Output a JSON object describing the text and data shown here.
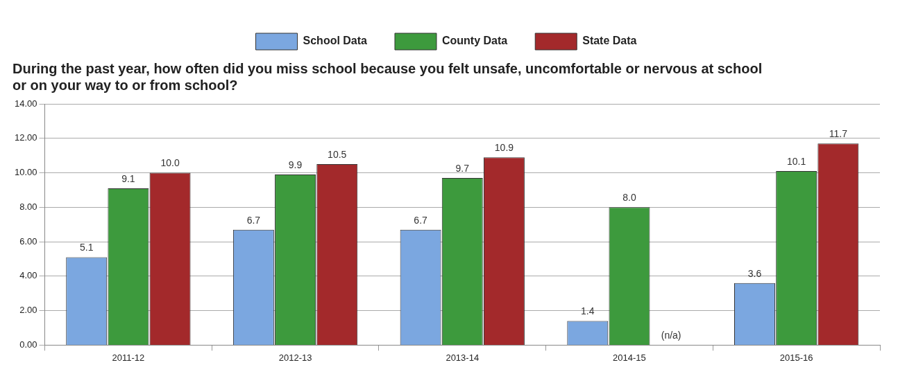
{
  "chart_data": {
    "type": "bar",
    "title": "During the past year, how often did you miss school because you felt unsafe, uncomfortable or nervous at school or on your way to or from school?",
    "categories": [
      "2011-12",
      "2012-13",
      "2013-14",
      "2014-15",
      "2015-16"
    ],
    "series": [
      {
        "name": "School Data",
        "color": "#7ba7e0",
        "values": [
          5.1,
          6.7,
          6.7,
          1.4,
          3.6
        ],
        "value_labels": [
          "5.1",
          "6.7",
          "6.7",
          "1.4",
          "3.6"
        ]
      },
      {
        "name": "County Data",
        "color": "#3d9a3d",
        "values": [
          9.1,
          9.9,
          9.7,
          8.0,
          10.1
        ],
        "value_labels": [
          "9.1",
          "9.9",
          "9.7",
          "8.0",
          "10.1"
        ]
      },
      {
        "name": "State Data",
        "color": "#a3292b",
        "values": [
          10.0,
          10.5,
          10.9,
          null,
          11.7
        ],
        "value_labels": [
          "10.0",
          "10.5",
          "10.9",
          "(n/a)",
          "11.7"
        ]
      }
    ],
    "ylim": [
      0,
      14
    ],
    "yticks": [
      {
        "value": 0,
        "label": "0.00"
      },
      {
        "value": 2,
        "label": "2.00"
      },
      {
        "value": 4,
        "label": "4.00"
      },
      {
        "value": 6,
        "label": "6.00"
      },
      {
        "value": 8,
        "label": "8.00"
      },
      {
        "value": 10,
        "label": "10.00"
      },
      {
        "value": 12,
        "label": "12.00"
      },
      {
        "value": 14,
        "label": "14.00"
      }
    ],
    "grid": "y",
    "legend": "top"
  }
}
